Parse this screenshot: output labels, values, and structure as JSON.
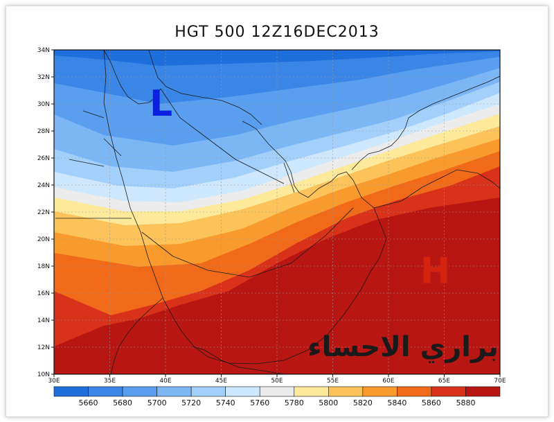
{
  "title": "HGT 500 12Z16DEC2013",
  "watermark": "براري الاحساء",
  "map": {
    "lon_range": [
      30,
      70
    ],
    "lat_range": [
      10,
      35
    ],
    "lon_ticks": [
      "30E",
      "35E",
      "40E",
      "45E",
      "50E",
      "55E",
      "60E",
      "65E",
      "70E"
    ],
    "lat_ticks": [
      "10N",
      "12N",
      "14N",
      "16N",
      "18N",
      "20N",
      "22N",
      "24N",
      "26N",
      "28N",
      "30N",
      "32N",
      "34N"
    ],
    "pressure_systems": [
      {
        "label": "L",
        "lon": 39.6,
        "lat": 31.0,
        "color": "#0a1fe0"
      },
      {
        "label": "H",
        "lon": 64.2,
        "lat": 18.1,
        "color": "#d42410"
      }
    ]
  },
  "colorbar": {
    "levels": [
      "5660",
      "5680",
      "5700",
      "5720",
      "5740",
      "5760",
      "5780",
      "5800",
      "5820",
      "5840",
      "5860",
      "5880"
    ],
    "colors": [
      "#1e6fdc",
      "#3a86e6",
      "#5a9ef0",
      "#7cb6f5",
      "#a3d0fa",
      "#cde7fc",
      "#ececec",
      "#fce99a",
      "#fbc35a",
      "#f89a2c",
      "#f06a1a",
      "#d8321a",
      "#b81612"
    ]
  }
}
